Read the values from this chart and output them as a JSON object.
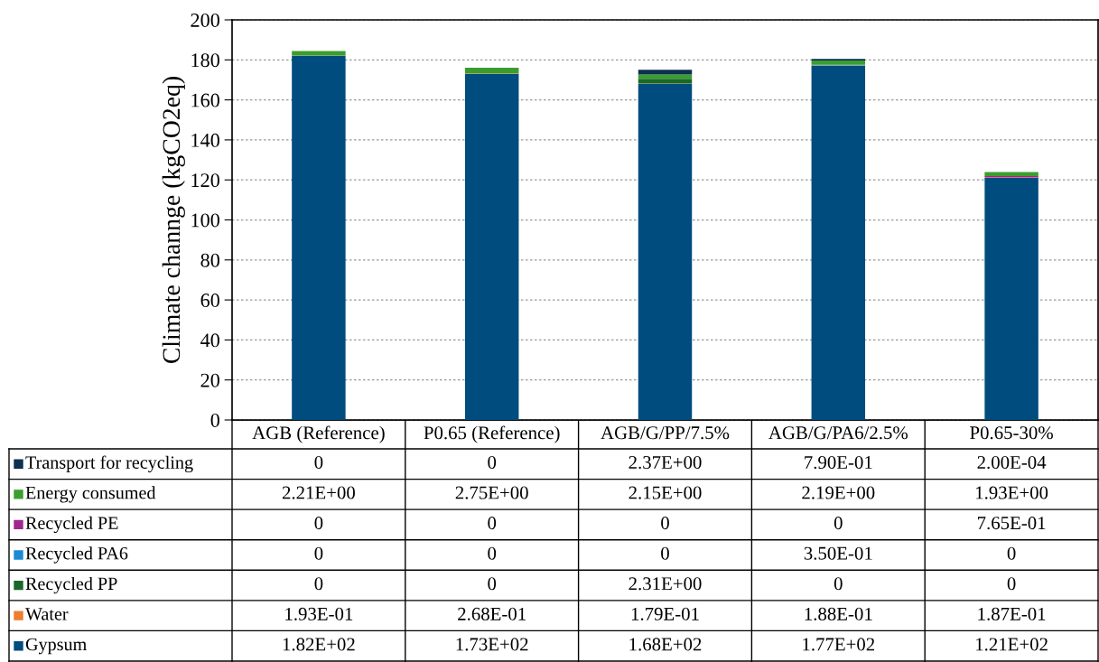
{
  "chart_data": {
    "type": "bar",
    "stacked": true,
    "ylabel": "Climate channge (kgCO2eq)",
    "categories": [
      "AGB (Reference)",
      "P0.65 (Reference)",
      "AGB/G/PP/7.5%",
      "AGB/G/PA6/2.5%",
      "P0.65-30%"
    ],
    "legend": "bottom left",
    "ylim": [
      0,
      200
    ],
    "yticks": [
      0,
      20,
      40,
      60,
      80,
      100,
      120,
      140,
      160,
      180,
      200
    ],
    "grid": "y",
    "series": [
      {
        "name": "Gypsum",
        "color": "#004c7e",
        "values": [
          182,
          173,
          168,
          177,
          121
        ],
        "value_labels": [
          "1.82E+02",
          "1.73E+02",
          "1.68E+02",
          "1.77E+02",
          "1.21E+02"
        ]
      },
      {
        "name": "Water",
        "color": "#ed7d31",
        "values": [
          0.193,
          0.268,
          0.179,
          0.188,
          0.187
        ],
        "value_labels": [
          "1.93E-01",
          "2.68E-01",
          "1.79E-01",
          "1.88E-01",
          "1.87E-01"
        ]
      },
      {
        "name": "Recycled PP",
        "color": "#17682a",
        "values": [
          0,
          0,
          2.31,
          0,
          0
        ],
        "value_labels": [
          "0",
          "0",
          "2.31E+00",
          "0",
          "0"
        ]
      },
      {
        "name": "Recycled PA6",
        "color": "#1b8ad3",
        "values": [
          0,
          0,
          0,
          0.35,
          0
        ],
        "value_labels": [
          "0",
          "0",
          "0",
          "3.50E-01",
          "0"
        ]
      },
      {
        "name": "Recycled PE",
        "color": "#a0288c",
        "values": [
          0,
          0,
          0,
          0,
          0.765
        ],
        "value_labels": [
          "0",
          "0",
          "0",
          "0",
          "7.65E-01"
        ]
      },
      {
        "name": "Energy consumed",
        "color": "#3a9e2e",
        "values": [
          2.21,
          2.75,
          2.15,
          2.19,
          1.93
        ],
        "value_labels": [
          "2.21E+00",
          "2.75E+00",
          "2.15E+00",
          "2.19E+00",
          "1.93E+00"
        ]
      },
      {
        "name": "Transport for recycling",
        "color": "#0b3050",
        "values": [
          0,
          0,
          2.37,
          0.79,
          0.0002
        ],
        "value_labels": [
          "0",
          "0",
          "2.37E+00",
          "7.90E-01",
          "2.00E-04"
        ]
      }
    ]
  }
}
